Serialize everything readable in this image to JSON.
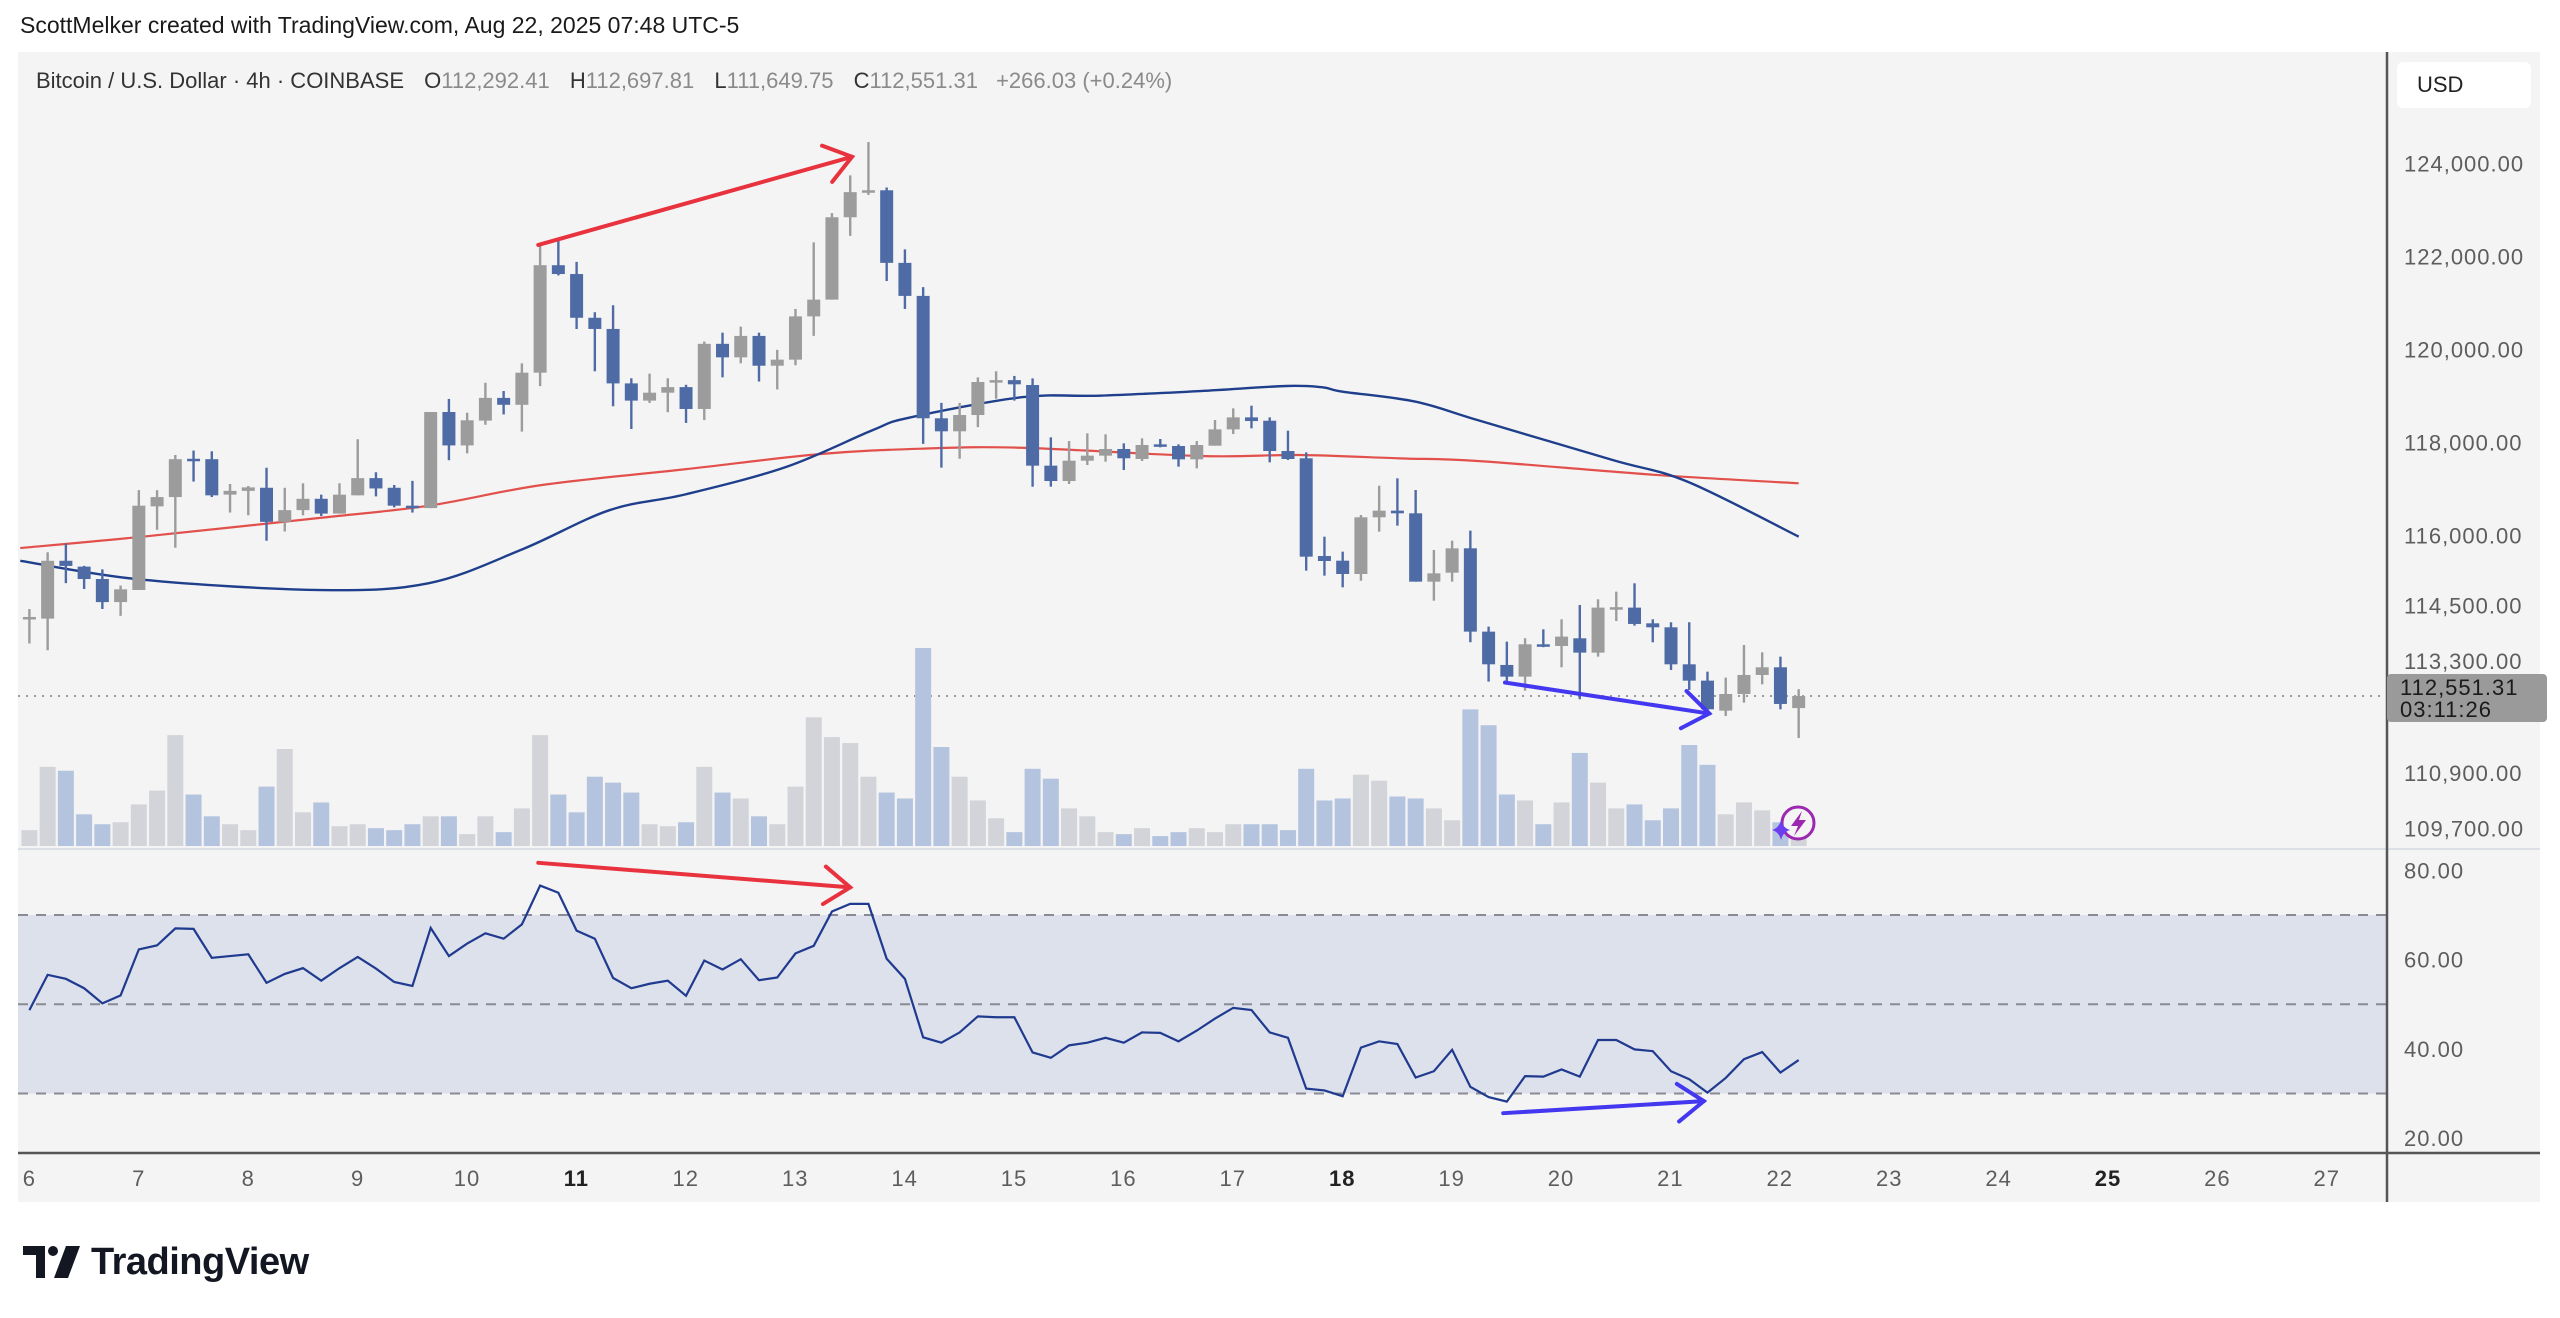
{
  "header": {
    "attribution": "ScottMelker created with TradingView.com, Aug 22, 2025 07:48 UTC-5"
  },
  "legend": {
    "symbol": "Bitcoin / U.S. Dollar · 4h · COINBASE",
    "open_label": "O",
    "open": "112,292.41",
    "high_label": "H",
    "high": "112,697.81",
    "low_label": "L",
    "low": "111,649.75",
    "close_label": "C",
    "close": "112,551.31",
    "change": "+266.03 (+0.24%)"
  },
  "price_axis": {
    "currency": "USD",
    "labels": [
      "124,000.00",
      "122,000.00",
      "120,000.00",
      "118,000.00",
      "116,000.00",
      "114,500.00",
      "113,300.00",
      "110,900.00",
      "109,700.00"
    ],
    "last_price": "112,551.31",
    "countdown": "03:11:26"
  },
  "rsi_axis": {
    "labels": [
      "80.00",
      "60.00",
      "40.00",
      "20.00"
    ]
  },
  "time_axis": {
    "labels": [
      "6",
      "7",
      "8",
      "9",
      "10",
      "11",
      "12",
      "13",
      "14",
      "15",
      "16",
      "17",
      "18",
      "19",
      "20",
      "21",
      "22",
      "23",
      "24",
      "25",
      "26",
      "27"
    ],
    "bold": [
      "11",
      "18",
      "25"
    ]
  },
  "logo": {
    "text": "TradingView"
  },
  "colors": {
    "background": "#f4f4f4",
    "up_candle": "#9c9c9c",
    "down_candle": "#4e6ba6",
    "up_volume": "#d2d4d9",
    "down_volume": "#b4c4df",
    "ma_blue": "#1f3f8c",
    "ma_red": "#e2504c",
    "rsi_line": "#1f3a8f",
    "rsi_band": "#dde1ec",
    "annotation_red": "#e8333f",
    "annotation_blue": "#4338f0",
    "last_price_label": "#9a9a9a",
    "assistant_icon": "#9c27b0"
  },
  "chart_data": {
    "type": "candlestick",
    "interval": "4h",
    "first_candle": "Aug 6",
    "candles_ohlc": [
      [
        114200,
        114420,
        113680,
        114250
      ],
      [
        114215,
        115640,
        113534,
        115458
      ],
      [
        115458,
        115828,
        114977,
        115347
      ],
      [
        115332,
        115350,
        114851,
        115066
      ],
      [
        115066,
        115273,
        114422,
        114570
      ],
      [
        114570,
        114925,
        114274,
        114844
      ],
      [
        114830,
        116975,
        114830,
        116642
      ],
      [
        116627,
        116975,
        116124,
        116827
      ],
      [
        116827,
        117730,
        115739,
        117641
      ],
      [
        117650,
        117826,
        117160,
        117620
      ],
      [
        117641,
        117811,
        116827,
        116864
      ],
      [
        116880,
        117108,
        116494,
        116960
      ],
      [
        116960,
        117064,
        116435,
        117035
      ],
      [
        117027,
        117456,
        115887,
        116294
      ],
      [
        116294,
        117027,
        116087,
        116546
      ],
      [
        116546,
        117123,
        116435,
        116790
      ],
      [
        116790,
        116879,
        116420,
        116472
      ],
      [
        116472,
        117123,
        116472,
        116879
      ],
      [
        116864,
        118070,
        116864,
        117234
      ],
      [
        117234,
        117360,
        116842,
        117012
      ],
      [
        117027,
        117086,
        116605,
        116642
      ],
      [
        116642,
        117175,
        116494,
        116590
      ],
      [
        116590,
        118655,
        116590,
        118655
      ],
      [
        118655,
        118936,
        117619,
        117937
      ],
      [
        117937,
        118640,
        117767,
        118477
      ],
      [
        118470,
        119284,
        118381,
        118958
      ],
      [
        118958,
        119106,
        118603,
        118810
      ],
      [
        118810,
        119700,
        118233,
        119500
      ],
      [
        119500,
        122240,
        119210,
        121810
      ],
      [
        121810,
        122370,
        121590,
        121620
      ],
      [
        121620,
        121880,
        120440,
        120680
      ],
      [
        120680,
        120800,
        119530,
        120440
      ],
      [
        120440,
        120950,
        118780,
        119270
      ],
      [
        119270,
        119380,
        118290,
        118900
      ],
      [
        118900,
        119480,
        118850,
        119070
      ],
      [
        119070,
        119380,
        118650,
        119190
      ],
      [
        119190,
        119240,
        118420,
        118720
      ],
      [
        118720,
        120170,
        118480,
        120120
      ],
      [
        120120,
        120360,
        119400,
        119830
      ],
      [
        119830,
        120490,
        119700,
        120290
      ],
      [
        120290,
        120360,
        119310,
        119650
      ],
      [
        119650,
        119990,
        119140,
        119780
      ],
      [
        119780,
        120870,
        119660,
        120710
      ],
      [
        120710,
        122300,
        120290,
        121070
      ],
      [
        121070,
        122930,
        121070,
        122840
      ],
      [
        122840,
        123740,
        122440,
        123380
      ],
      [
        123380,
        124456,
        123320,
        123420
      ],
      [
        123420,
        123480,
        121470,
        121860
      ],
      [
        121860,
        122150,
        120870,
        121150
      ],
      [
        121150,
        121340,
        117970,
        118520
      ],
      [
        118520,
        118850,
        117460,
        118240
      ],
      [
        118240,
        118850,
        117650,
        118590
      ],
      [
        118590,
        119400,
        118330,
        119300
      ],
      [
        119300,
        119530,
        118940,
        119340
      ],
      [
        119340,
        119430,
        118900,
        119250
      ],
      [
        119235,
        119378,
        117050,
        117502
      ],
      [
        117502,
        118110,
        117050,
        117172
      ],
      [
        117172,
        118031,
        117108,
        117609
      ],
      [
        117609,
        118196,
        117516,
        117717
      ],
      [
        117717,
        118175,
        117588,
        117860
      ],
      [
        117860,
        117981,
        117408,
        117660
      ],
      [
        117645,
        118089,
        117602,
        117946
      ],
      [
        117960,
        118075,
        117896,
        117950
      ],
      [
        117924,
        117960,
        117480,
        117638
      ],
      [
        117638,
        118031,
        117444,
        117946
      ],
      [
        117931,
        118483,
        117931,
        118282
      ],
      [
        118282,
        118733,
        118182,
        118540
      ],
      [
        118540,
        118791,
        118304,
        118461
      ],
      [
        118468,
        118540,
        117573,
        117817
      ],
      [
        117817,
        118254,
        117624,
        117645
      ],
      [
        117660,
        117788,
        115245,
        115546
      ],
      [
        115560,
        115976,
        115138,
        115453
      ],
      [
        115460,
        115654,
        114887,
        115174
      ],
      [
        115174,
        116442,
        115030,
        116392
      ],
      [
        116392,
        117071,
        116083,
        116535
      ],
      [
        116535,
        117230,
        116213,
        116478
      ],
      [
        116478,
        116979,
        115009,
        115009
      ],
      [
        115009,
        115690,
        114600,
        115188
      ],
      [
        115202,
        115890,
        115009,
        115725
      ],
      [
        115726,
        116105,
        113706,
        113935
      ],
      [
        113935,
        114043,
        112861,
        113233
      ],
      [
        113219,
        113720,
        112839,
        112968
      ],
      [
        112968,
        113792,
        112667,
        113663
      ],
      [
        113663,
        113985,
        113600,
        113650
      ],
      [
        113627,
        114200,
        113169,
        113828
      ],
      [
        113792,
        114508,
        112481,
        113484
      ],
      [
        113484,
        114630,
        113398,
        114451
      ],
      [
        114450,
        114795,
        114164,
        114460
      ],
      [
        114451,
        114974,
        114064,
        114100
      ],
      [
        114114,
        114200,
        113706,
        114028
      ],
      [
        114028,
        114136,
        113111,
        113233
      ],
      [
        113233,
        114136,
        112681,
        112882
      ],
      [
        112882,
        113075,
        112195,
        112266
      ],
      [
        112237,
        112947,
        112123,
        112595
      ],
      [
        112595,
        113649,
        112409,
        113004
      ],
      [
        113004,
        113491,
        112803,
        113169
      ],
      [
        113169,
        113398,
        112266,
        112381
      ],
      [
        112292.41,
        112697.81,
        111649.75,
        112551.31
      ]
    ],
    "volume_relative": [
      8,
      40,
      38,
      16,
      11,
      12,
      21,
      28,
      56,
      26,
      15,
      11,
      8,
      30,
      49,
      17,
      22,
      10,
      11,
      9,
      8,
      11,
      15,
      15,
      6,
      15,
      7,
      19,
      56,
      26,
      17,
      35,
      32,
      27,
      11,
      10,
      12,
      40,
      27,
      24,
      15,
      11,
      30,
      65,
      55,
      52,
      35,
      27,
      24,
      100,
      50,
      35,
      23,
      14,
      7,
      39,
      34,
      19,
      15,
      7,
      6,
      9,
      5,
      7,
      9,
      7,
      11,
      11,
      11,
      8,
      39,
      23,
      24,
      36,
      33,
      25,
      24,
      19,
      13,
      69,
      61,
      26,
      23,
      11,
      22,
      47,
      32,
      19,
      21,
      13,
      19,
      51,
      41,
      16,
      22,
      18,
      12,
      5
    ],
    "ma_blue": [
      [
        0.5,
        115458
      ],
      [
        7.2,
        115051
      ],
      [
        17,
        114829
      ],
      [
        22.9,
        114977
      ],
      [
        28,
        115700
      ],
      [
        32.8,
        116545
      ],
      [
        37,
        116888
      ],
      [
        42.5,
        117476
      ],
      [
        47.2,
        118260
      ],
      [
        49.2,
        118530
      ],
      [
        55.4,
        118973
      ],
      [
        59.7,
        119006
      ],
      [
        65.2,
        119106
      ],
      [
        69.9,
        119214
      ],
      [
        71.9,
        119185
      ],
      [
        73,
        119092
      ],
      [
        77,
        118877
      ],
      [
        80.5,
        118469
      ],
      [
        87.8,
        117624
      ],
      [
        91.9,
        117158
      ],
      [
        98,
        115977
      ]
    ],
    "ma_red": [
      [
        0.5,
        115732
      ],
      [
        7.2,
        115976
      ],
      [
        17,
        116383
      ],
      [
        22.9,
        116642
      ],
      [
        29.1,
        117086
      ],
      [
        37,
        117427
      ],
      [
        44.3,
        117750
      ],
      [
        49.9,
        117867
      ],
      [
        55.4,
        117887
      ],
      [
        65.2,
        117709
      ],
      [
        70.6,
        117731
      ],
      [
        76.1,
        117659
      ],
      [
        80.5,
        117600
      ],
      [
        90.2,
        117302
      ],
      [
        98,
        117123
      ]
    ],
    "rsi": [
      48.7,
      56.6,
      55.7,
      53.6,
      50.2,
      52,
      62.3,
      63.2,
      67,
      66.9,
      60.4,
      60.8,
      61.2,
      54.8,
      56.8,
      58.1,
      55.3,
      58.1,
      60.6,
      58,
      55,
      54.1,
      67.1,
      60.8,
      63.6,
      65.9,
      64.7,
      67.9,
      76.6,
      75,
      66.5,
      64.7,
      55.9,
      53.6,
      54.6,
      55.3,
      51.9,
      59.8,
      57.8,
      60.1,
      55.4,
      56,
      61.4,
      63.1,
      70.8,
      72.5,
      72.5,
      60.2,
      55.7,
      42.6,
      41.4,
      43.7,
      47.3,
      47.1,
      47.1,
      39.2,
      38,
      40.8,
      41.4,
      42.5,
      41.4,
      43.7,
      43.6,
      41.7,
      44.1,
      46.8,
      49.2,
      48.7,
      43.7,
      42.5,
      31.1,
      30.7,
      29.4,
      40.3,
      41.7,
      41.1,
      33.6,
      35,
      39.8,
      31.5,
      29.2,
      28.2,
      33.9,
      33.8,
      35.4,
      33.8,
      42,
      42,
      39.9,
      39.5,
      35,
      33.2,
      30.2,
      33.5,
      37.7,
      39.3,
      34.7,
      37.5
    ],
    "rsi_levels": [
      70,
      50,
      30
    ],
    "price_range": [
      109700,
      124000
    ],
    "rsi_range": [
      20,
      80
    ],
    "last_price": 112551.31,
    "annotations": [
      {
        "pane": "price",
        "color": "red",
        "from": [
          28.9,
          122246
        ],
        "to": [
          46.1,
          124140
        ]
      },
      {
        "pane": "price",
        "color": "blue",
        "from": [
          81.9,
          112841
        ],
        "to": [
          93.1,
          112175
        ]
      },
      {
        "pane": "rsi",
        "color": "red",
        "from": [
          28.9,
          81.7
        ],
        "to": [
          46,
          76.2
        ]
      },
      {
        "pane": "rsi",
        "color": "blue",
        "from": [
          81.8,
          25.6
        ],
        "to": [
          92.8,
          28.3
        ]
      }
    ]
  }
}
